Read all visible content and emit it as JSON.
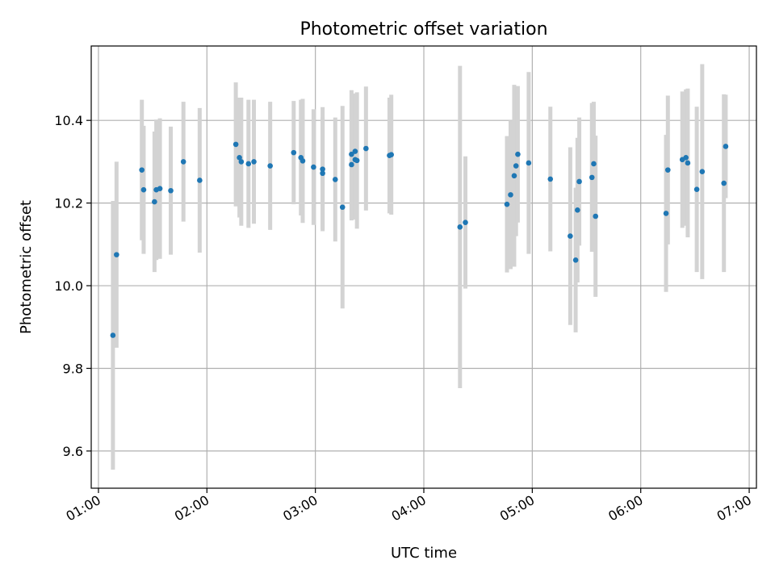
{
  "chart_data": {
    "type": "scatter",
    "title": "Photometric offset variation",
    "xlabel": "UTC time",
    "ylabel": "Photometric offset",
    "xlim": [
      "00:56",
      "07:04"
    ],
    "ylim": [
      9.51,
      10.58
    ],
    "x_ticks": [
      "01:00",
      "02:00",
      "03:00",
      "04:00",
      "05:00",
      "06:00",
      "07:00"
    ],
    "y_ticks": [
      9.6,
      9.8,
      10.0,
      10.2,
      10.4
    ],
    "y_tick_labels": [
      "9.6",
      "9.8",
      "10.0",
      "10.2",
      "10.4"
    ],
    "grid": true,
    "legend": "none",
    "colors": {
      "points": "#1f77b4",
      "errorbars": "#d3d3d3",
      "grid": "#b0b0b0",
      "axes": "#000000"
    },
    "series": [
      {
        "x": [
          "01:08",
          "01:10",
          "01:24",
          "01:25",
          "01:31",
          "01:32",
          "01:34",
          "01:40",
          "01:47",
          "01:56",
          "02:16",
          "02:18",
          "02:19",
          "02:23",
          "02:26",
          "02:35",
          "02:48",
          "02:52",
          "02:53",
          "02:59",
          "03:04",
          "03:04",
          "03:11",
          "03:15",
          "03:20",
          "03:20",
          "03:22",
          "03:22",
          "03:23",
          "03:28",
          "03:41",
          "03:42",
          "04:20",
          "04:23",
          "04:46",
          "04:48",
          "04:50",
          "04:51",
          "04:52",
          "04:58",
          "05:10",
          "05:21",
          "05:24",
          "05:25",
          "05:26",
          "05:33",
          "05:34",
          "05:35",
          "06:14",
          "06:15",
          "06:23",
          "06:25",
          "06:26",
          "06:31",
          "06:34",
          "06:46",
          "06:47"
        ],
        "y": [
          9.88,
          10.075,
          10.28,
          10.232,
          10.203,
          10.232,
          10.235,
          10.23,
          10.3,
          10.255,
          10.342,
          10.31,
          10.3,
          10.295,
          10.3,
          10.29,
          10.322,
          10.31,
          10.302,
          10.287,
          10.282,
          10.272,
          10.257,
          10.19,
          10.318,
          10.293,
          10.325,
          10.305,
          10.303,
          10.332,
          10.315,
          10.317,
          10.142,
          10.153,
          10.197,
          10.22,
          10.266,
          10.29,
          10.318,
          10.297,
          10.258,
          10.12,
          10.062,
          10.183,
          10.252,
          10.262,
          10.295,
          10.168,
          10.175,
          10.28,
          10.305,
          10.31,
          10.297,
          10.233,
          10.276,
          10.248,
          10.337
        ],
        "error": [
          0.325,
          0.225,
          0.17,
          0.155,
          0.17,
          0.17,
          0.17,
          0.155,
          0.145,
          0.175,
          0.15,
          0.145,
          0.155,
          0.155,
          0.15,
          0.155,
          0.125,
          0.14,
          0.15,
          0.14,
          0.15,
          0.135,
          0.15,
          0.245,
          0.155,
          0.135,
          0.14,
          0.145,
          0.165,
          0.15,
          0.14,
          0.145,
          0.39,
          0.16,
          0.165,
          0.18,
          0.22,
          0.17,
          0.165,
          0.22,
          0.175,
          0.215,
          0.175,
          0.175,
          0.155,
          0.18,
          0.15,
          0.195,
          0.19,
          0.18,
          0.165,
          0.165,
          0.18,
          0.2,
          0.26,
          0.215,
          0.125
        ]
      }
    ]
  }
}
